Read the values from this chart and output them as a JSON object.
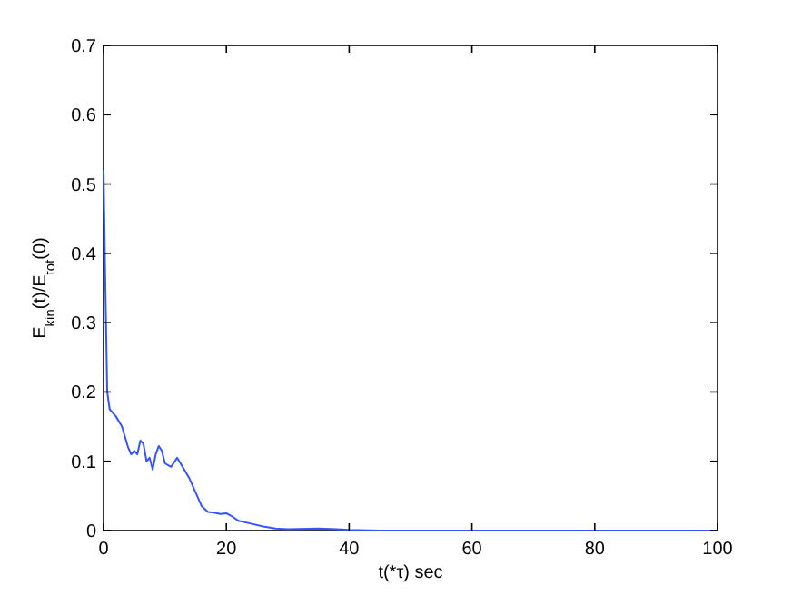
{
  "chart_data": {
    "type": "line",
    "xlabel": "t(*τ) sec",
    "ylabel": "E$_{kin}$(t)/E$_{tot}$(0)",
    "xlim": [
      0,
      100
    ],
    "xticks": [
      0,
      20,
      40,
      60,
      80,
      100
    ],
    "ylim": [
      0,
      0.7
    ],
    "yticks": [
      0,
      0.1,
      0.2,
      0.3,
      0.4,
      0.5,
      0.6,
      0.7
    ],
    "grid": false,
    "series": [
      {
        "color": "#3355ff",
        "x": [
          0,
          0.3,
          0.6,
          1,
          2,
          3,
          4,
          4.5,
          5,
          5.5,
          6,
          6.5,
          7,
          7.5,
          8,
          8.5,
          9,
          9.5,
          10,
          11,
          12,
          13,
          14,
          15,
          16,
          17,
          18,
          19,
          20,
          21,
          22,
          24,
          26,
          28,
          30,
          35,
          38,
          40,
          45,
          50,
          100
        ],
        "values": [
          0.52,
          0.35,
          0.2,
          0.175,
          0.165,
          0.15,
          0.12,
          0.11,
          0.115,
          0.11,
          0.13,
          0.125,
          0.1,
          0.105,
          0.088,
          0.11,
          0.122,
          0.115,
          0.097,
          0.092,
          0.105,
          0.09,
          0.075,
          0.055,
          0.035,
          0.027,
          0.026,
          0.024,
          0.025,
          0.02,
          0.014,
          0.01,
          0.006,
          0.003,
          0.002,
          0.003,
          0.002,
          0.001,
          0,
          0,
          0
        ]
      }
    ]
  }
}
